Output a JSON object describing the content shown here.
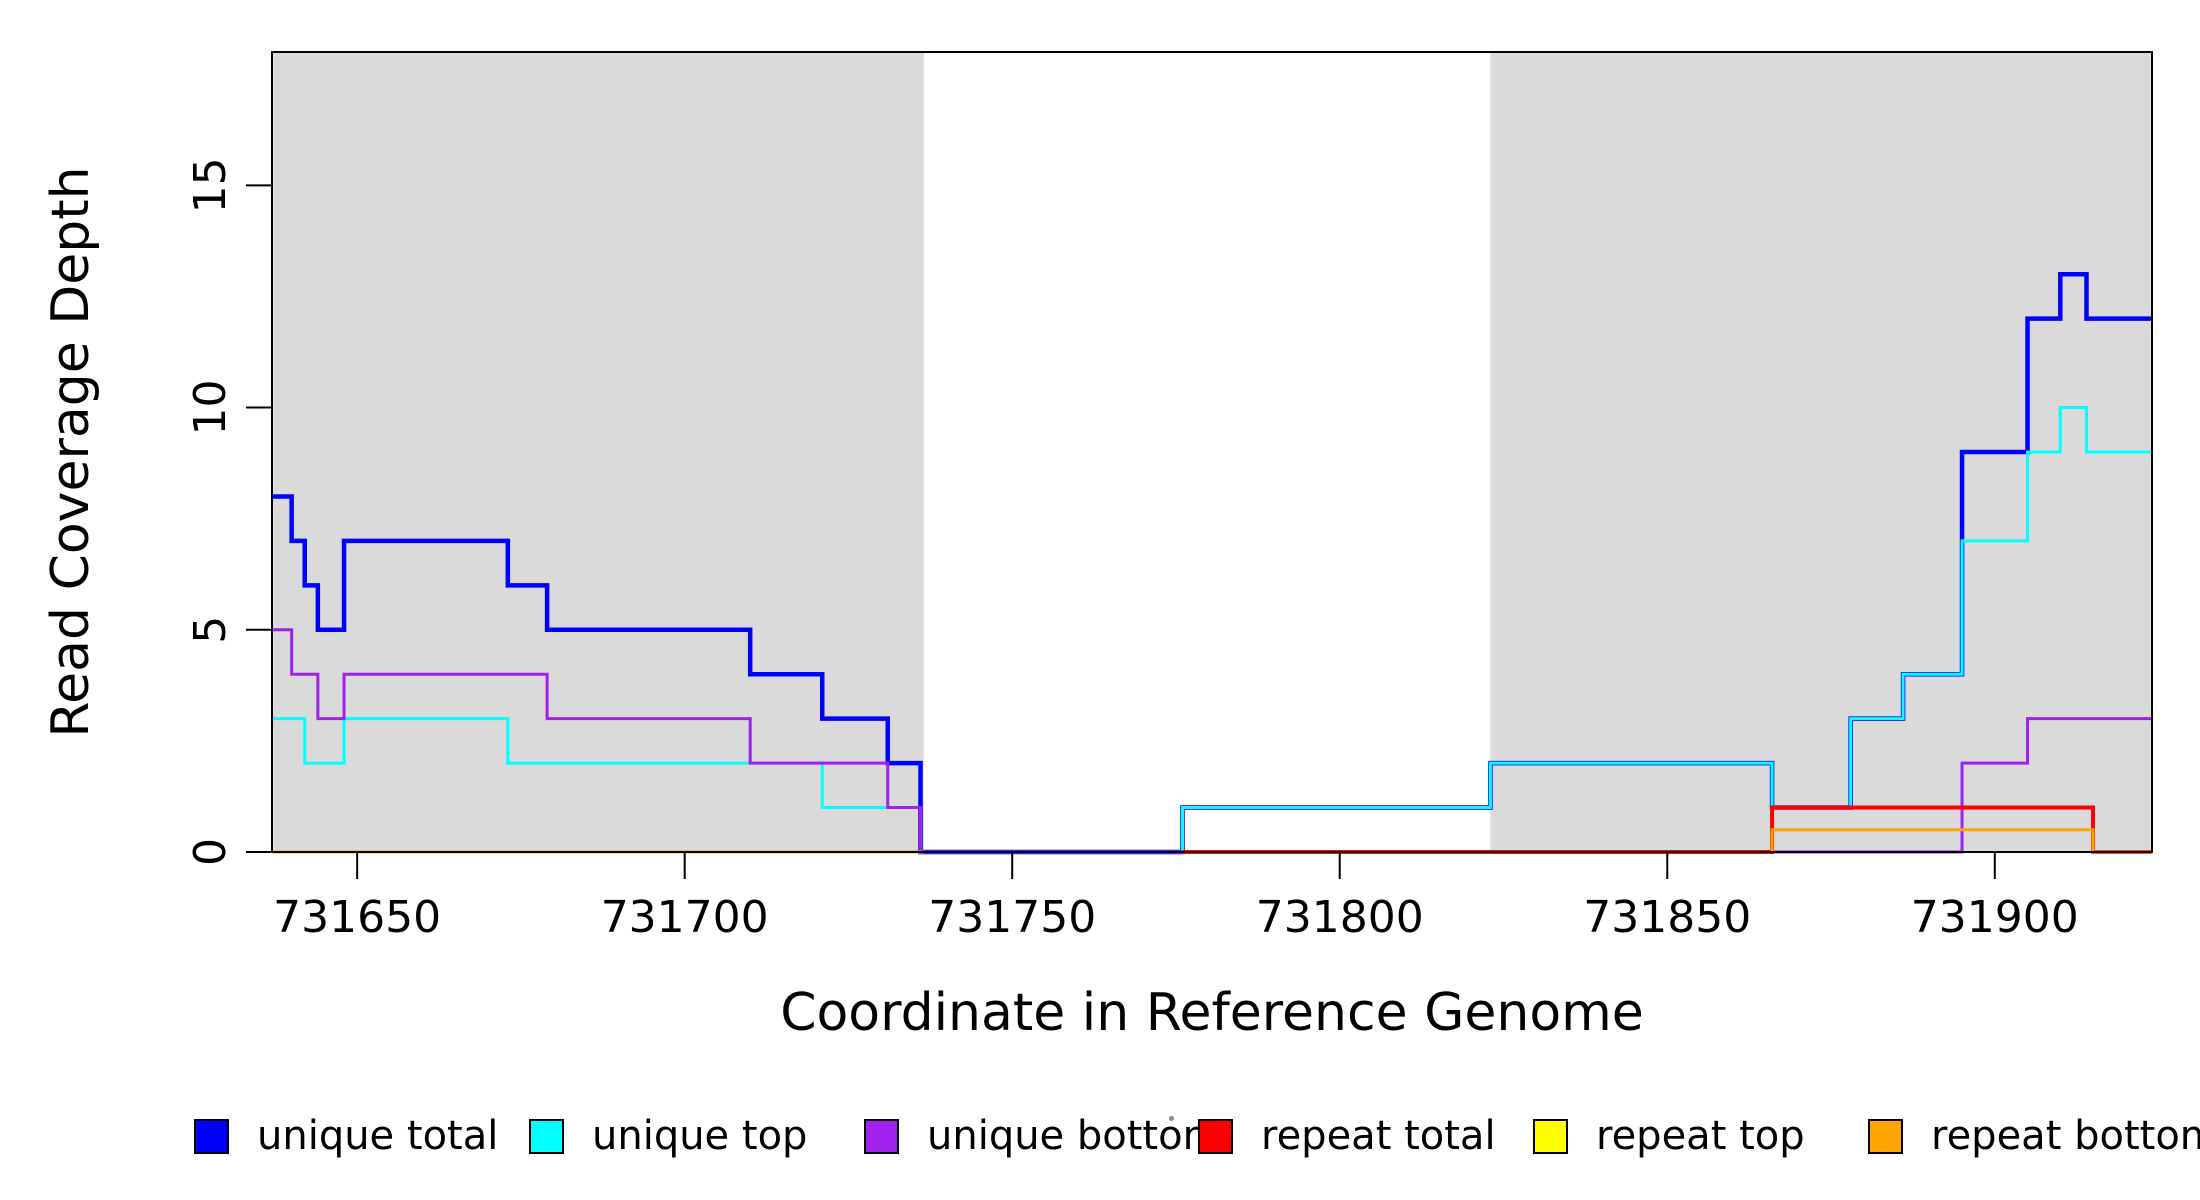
{
  "figure": {
    "background": "#ffffff",
    "plot_background_shaded": "#dadada"
  },
  "axes": {
    "x_label": "Coordinate in Reference Genome",
    "y_label": "Read Coverage Depth",
    "x_tick_labels": [
      "731650",
      "731700",
      "731750",
      "731800",
      "731850",
      "731900"
    ],
    "y_tick_labels": [
      "0",
      "5",
      "10",
      "15"
    ]
  },
  "legend": {
    "items": [
      {
        "label": "unique total",
        "color": "#0000ff"
      },
      {
        "label": "unique top",
        "color": "#00ffff"
      },
      {
        "label": "unique bottom",
        "color": "#a020f0"
      },
      {
        "label": "repeat total",
        "color": "#ff0000"
      },
      {
        "label": "repeat top",
        "color": "#ffff00"
      },
      {
        "label": "repeat bottom",
        "color": "#ffa500"
      }
    ]
  },
  "chart_data": {
    "type": "line",
    "subtype": "step",
    "title": "",
    "xlabel": "Coordinate in Reference Genome",
    "ylabel": "Read Coverage Depth",
    "xlim": [
      731637,
      731924
    ],
    "ylim": [
      0,
      18
    ],
    "x_ticks": [
      731650,
      731700,
      731750,
      731800,
      731850,
      731900
    ],
    "y_ticks": [
      0,
      5,
      10,
      15
    ],
    "grid": false,
    "legend_position": "bottom",
    "shaded_regions": [
      {
        "from": 731637,
        "to": 731736.5,
        "color": "#dadada"
      },
      {
        "from": 731823,
        "to": 731924,
        "color": "#dadada"
      }
    ],
    "series": [
      {
        "name": "unique total",
        "color": "#0000ff",
        "width": 4.5,
        "segments": [
          [
            [
              731637,
              8
            ],
            [
              731640,
              7
            ],
            [
              731642,
              6
            ],
            [
              731644,
              5
            ],
            [
              731648,
              7
            ],
            [
              731673,
              6
            ],
            [
              731679,
              5
            ],
            [
              731710,
              4
            ],
            [
              731721,
              3
            ],
            [
              731731,
              2
            ],
            [
              731736,
              0
            ],
            [
              731776,
              1
            ],
            [
              731823,
              2
            ],
            [
              731866,
              1
            ],
            [
              731878,
              3
            ],
            [
              731886,
              4
            ],
            [
              731895,
              9
            ],
            [
              731905,
              12
            ],
            [
              731910,
              13
            ],
            [
              731914,
              12
            ],
            [
              731924,
              12
            ]
          ]
        ]
      },
      {
        "name": "unique top",
        "color": "#00ffff",
        "width": 3,
        "segments": [
          [
            [
              731637,
              3
            ],
            [
              731642,
              2
            ],
            [
              731648,
              3
            ],
            [
              731673,
              2
            ],
            [
              731721,
              1
            ],
            [
              731736,
              0
            ],
            [
              731776,
              1
            ],
            [
              731823,
              2
            ],
            [
              731866,
              1
            ],
            [
              731878,
              3
            ],
            [
              731886,
              4
            ],
            [
              731895,
              7
            ],
            [
              731905,
              9
            ],
            [
              731910,
              10
            ],
            [
              731914,
              9
            ],
            [
              731924,
              9
            ]
          ]
        ]
      },
      {
        "name": "unique bottom",
        "color": "#a020f0",
        "width": 3,
        "segments": [
          [
            [
              731637,
              5
            ],
            [
              731640,
              4
            ],
            [
              731644,
              3
            ],
            [
              731648,
              4
            ],
            [
              731679,
              3
            ],
            [
              731710,
              2
            ],
            [
              731731,
              1
            ],
            [
              731736,
              0
            ],
            [
              731895,
              2
            ],
            [
              731905,
              3
            ],
            [
              731924,
              3
            ]
          ]
        ]
      },
      {
        "name": "repeat total",
        "color": "#ff0000",
        "width": 4,
        "segments": [
          [
            [
              731776,
              0
            ],
            [
              731866,
              0
            ],
            [
              731866,
              1
            ],
            [
              731915,
              1
            ],
            [
              731915,
              0
            ],
            [
              731924,
              0
            ]
          ]
        ]
      },
      {
        "name": "repeat top",
        "color": "#ffff00",
        "width": 3,
        "segments": [
          [
            [
              731866,
              0
            ],
            [
              731866,
              1
            ],
            [
              731915,
              1
            ],
            [
              731915,
              0
            ],
            [
              731924,
              0
            ]
          ]
        ]
      },
      {
        "name": "repeat bottom",
        "color": "#ffa500",
        "width": 3,
        "segments": [
          [
            [
              731637,
              0
            ],
            [
              731736.5,
              0
            ]
          ],
          [
            [
              731866,
              0
            ],
            [
              731866,
              0.5
            ],
            [
              731915,
              0.5
            ],
            [
              731915,
              0
            ],
            [
              731924,
              0
            ]
          ]
        ]
      }
    ],
    "draw_order": [
      "unique total",
      "unique top",
      "unique bottom",
      "repeat top",
      "repeat total",
      "repeat bottom"
    ]
  },
  "artifact": {
    "note": "tiny stray gray dot between 'unique bottom' and 'repeat total' legend entries"
  }
}
